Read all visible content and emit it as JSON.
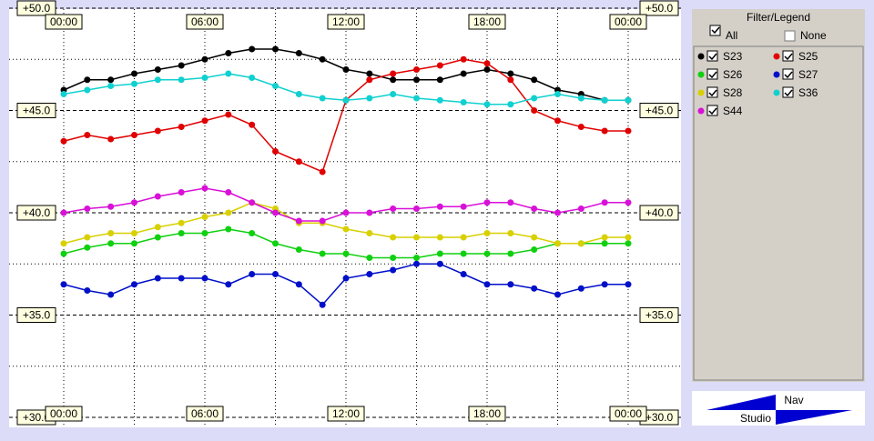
{
  "chart_data": {
    "type": "line",
    "x": [
      0,
      1,
      2,
      3,
      4,
      5,
      6,
      7,
      8,
      9,
      10,
      11,
      12,
      13,
      14,
      15,
      16,
      17,
      18,
      19,
      20,
      21,
      22,
      23,
      24
    ],
    "xlim": [
      0,
      24
    ],
    "xticks": [
      {
        "value": 0,
        "label": "00:00"
      },
      {
        "value": 6,
        "label": "06:00"
      },
      {
        "value": 12,
        "label": "12:00"
      },
      {
        "value": 18,
        "label": "18:00"
      },
      {
        "value": 24,
        "label": "00:00"
      }
    ],
    "ylim": [
      30,
      50
    ],
    "yticks": [
      {
        "value": 30,
        "label": "+30.0"
      },
      {
        "value": 35,
        "label": "+35.0"
      },
      {
        "value": 40,
        "label": "+40.0"
      },
      {
        "value": 45,
        "label": "+45.0"
      },
      {
        "value": 50,
        "label": "+50.0"
      }
    ],
    "grid": true,
    "series": [
      {
        "name": "S23",
        "color": "#000000",
        "values": [
          46,
          46.5,
          46.5,
          46.8,
          47,
          47.2,
          47.5,
          47.8,
          48,
          48,
          47.8,
          47.5,
          47,
          46.8,
          46.5,
          46.5,
          46.5,
          46.8,
          47,
          46.8,
          46.5,
          46,
          45.8,
          45.5,
          45.5
        ]
      },
      {
        "name": "S25",
        "color": "#e00000",
        "values": [
          43.5,
          43.8,
          43.6,
          43.8,
          44,
          44.2,
          44.5,
          44.8,
          44.3,
          43,
          42.5,
          42,
          45.5,
          46.5,
          46.8,
          47,
          47.2,
          47.5,
          47.3,
          46.5,
          45,
          44.5,
          44.2,
          44,
          44
        ]
      },
      {
        "name": "S26",
        "color": "#10d010",
        "values": [
          38,
          38.3,
          38.5,
          38.5,
          38.8,
          39,
          39,
          39.2,
          39,
          38.5,
          38.2,
          38,
          38,
          37.8,
          37.8,
          37.8,
          38,
          38,
          38,
          38,
          38.2,
          38.5,
          38.5,
          38.5,
          38.5
        ]
      },
      {
        "name": "S27",
        "color": "#0010c8",
        "values": [
          36.5,
          36.2,
          36,
          36.5,
          36.8,
          36.8,
          36.8,
          36.5,
          37,
          37,
          36.5,
          35.5,
          36.8,
          37,
          37.2,
          37.5,
          37.5,
          37,
          36.5,
          36.5,
          36.3,
          36,
          36.3,
          36.5,
          36.5
        ]
      },
      {
        "name": "S28",
        "color": "#d8d000",
        "values": [
          38.5,
          38.8,
          39,
          39,
          39.3,
          39.5,
          39.8,
          40,
          40.5,
          40.2,
          39.5,
          39.5,
          39.2,
          39,
          38.8,
          38.8,
          38.8,
          38.8,
          39,
          39,
          38.8,
          38.5,
          38.5,
          38.8,
          38.8
        ]
      },
      {
        "name": "S36",
        "color": "#10d0d0",
        "values": [
          45.8,
          46,
          46.2,
          46.3,
          46.5,
          46.5,
          46.6,
          46.8,
          46.6,
          46.2,
          45.8,
          45.6,
          45.5,
          45.6,
          45.8,
          45.6,
          45.5,
          45.4,
          45.3,
          45.3,
          45.6,
          45.8,
          45.6,
          45.5,
          45.5
        ]
      },
      {
        "name": "S44",
        "color": "#d810d8",
        "values": [
          40,
          40.2,
          40.3,
          40.5,
          40.8,
          41,
          41.2,
          41,
          40.5,
          40,
          39.6,
          39.6,
          40,
          40,
          40.2,
          40.2,
          40.3,
          40.3,
          40.5,
          40.5,
          40.2,
          40,
          40.2,
          40.5,
          40.5
        ]
      }
    ]
  },
  "legend_panel": {
    "title": "Filter/Legend",
    "all": "All",
    "none": "None"
  },
  "nav": {
    "top": "Nav",
    "bottom": "Studio"
  }
}
